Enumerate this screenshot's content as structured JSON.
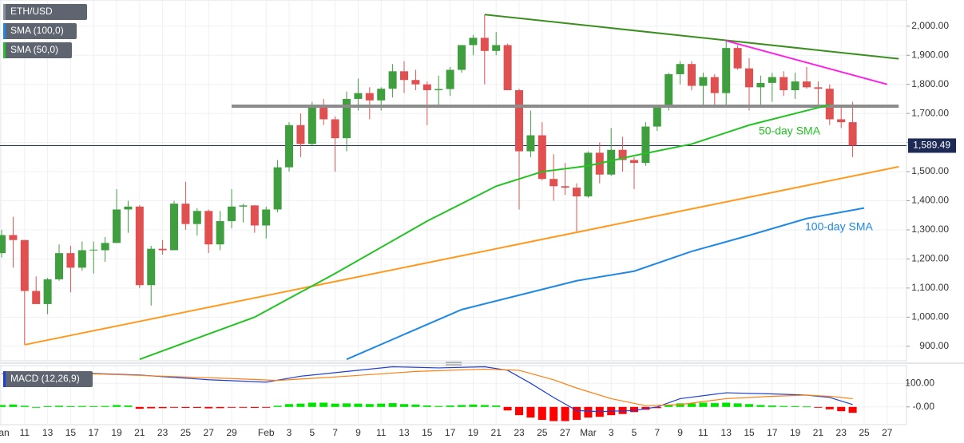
{
  "chart_data": [
    {
      "type": "candlestick",
      "title": "ETH/USD",
      "up_color": "#3f9f3f",
      "down_color": "#e05050",
      "xlim": [
        -0.14,
        78.68
      ],
      "ylim": [
        850,
        2090
      ],
      "yticks": [
        {
          "value": 900,
          "label": "900.00"
        },
        {
          "value": 1000,
          "label": "1,000.00"
        },
        {
          "value": 1100,
          "label": "1,100.00"
        },
        {
          "value": 1200,
          "label": "1,200.00"
        },
        {
          "value": 1300,
          "label": "1,300.00"
        },
        {
          "value": 1400,
          "label": "1,400.00"
        },
        {
          "value": 1500,
          "label": "1,500.00"
        },
        {
          "value": 1600,
          "label": "1,600.00"
        },
        {
          "value": 1700,
          "label": "1,700.00"
        },
        {
          "value": 1800,
          "label": "1,800.00"
        },
        {
          "value": 1900,
          "label": "1,900.00"
        },
        {
          "value": 2000,
          "label": "2,000.00"
        }
      ],
      "xticks": [
        {
          "value": 0,
          "label": "Jan"
        },
        {
          "value": 2,
          "label": "11"
        },
        {
          "value": 4,
          "label": "13"
        },
        {
          "value": 6,
          "label": "15"
        },
        {
          "value": 8,
          "label": "17"
        },
        {
          "value": 10,
          "label": "19"
        },
        {
          "value": 12,
          "label": "21"
        },
        {
          "value": 14,
          "label": "23"
        },
        {
          "value": 16,
          "label": "25"
        },
        {
          "value": 18,
          "label": "27"
        },
        {
          "value": 20,
          "label": "29"
        },
        {
          "value": 23,
          "label": "Feb"
        },
        {
          "value": 25,
          "label": "3"
        },
        {
          "value": 27,
          "label": "5"
        },
        {
          "value": 29,
          "label": "7"
        },
        {
          "value": 31,
          "label": "9"
        },
        {
          "value": 33,
          "label": "11"
        },
        {
          "value": 35,
          "label": "13"
        },
        {
          "value": 37,
          "label": "15"
        },
        {
          "value": 39,
          "label": "17"
        },
        {
          "value": 41,
          "label": "19"
        },
        {
          "value": 43,
          "label": "21"
        },
        {
          "value": 45,
          "label": "23"
        },
        {
          "value": 47,
          "label": "25"
        },
        {
          "value": 49,
          "label": "27"
        },
        {
          "value": 51,
          "label": "Mar"
        },
        {
          "value": 53,
          "label": "3"
        },
        {
          "value": 55,
          "label": "5"
        },
        {
          "value": 57,
          "label": "7"
        },
        {
          "value": 59,
          "label": "9"
        },
        {
          "value": 61,
          "label": "11"
        },
        {
          "value": 63,
          "label": "13"
        },
        {
          "value": 65,
          "label": "15"
        },
        {
          "value": 67,
          "label": "17"
        },
        {
          "value": 69,
          "label": "19"
        },
        {
          "value": 71,
          "label": "21"
        },
        {
          "value": 73,
          "label": "23"
        },
        {
          "value": 75,
          "label": "25"
        },
        {
          "value": 77,
          "label": "27"
        }
      ],
      "ohlc": [
        [
          1220,
          1300,
          1205,
          1282
        ],
        [
          1282,
          1345,
          1170,
          1265
        ],
        [
          1265,
          1265,
          905,
          1090
        ],
        [
          1090,
          1140,
          1045,
          1045
        ],
        [
          1045,
          1135,
          1010,
          1130
        ],
        [
          1130,
          1250,
          1125,
          1220
        ],
        [
          1220,
          1245,
          1085,
          1170
        ],
        [
          1170,
          1260,
          1160,
          1230
        ],
        [
          1230,
          1260,
          1150,
          1232
        ],
        [
          1230,
          1275,
          1190,
          1255
        ],
        [
          1255,
          1440,
          1255,
          1370
        ],
        [
          1370,
          1400,
          1290,
          1380
        ],
        [
          1380,
          1385,
          1100,
          1110
        ],
        [
          1110,
          1245,
          1040,
          1235
        ],
        [
          1235,
          1265,
          1215,
          1230
        ],
        [
          1230,
          1400,
          1230,
          1390
        ],
        [
          1390,
          1465,
          1300,
          1320
        ],
        [
          1320,
          1375,
          1280,
          1365
        ],
        [
          1365,
          1370,
          1220,
          1250
        ],
        [
          1250,
          1365,
          1230,
          1330
        ],
        [
          1330,
          1440,
          1305,
          1380
        ],
        [
          1380,
          1390,
          1325,
          1384
        ],
        [
          1384,
          1385,
          1290,
          1315
        ],
        [
          1315,
          1380,
          1270,
          1370
        ],
        [
          1370,
          1540,
          1360,
          1515
        ],
        [
          1515,
          1670,
          1500,
          1660
        ],
        [
          1660,
          1700,
          1550,
          1595
        ],
        [
          1595,
          1740,
          1590,
          1720
        ],
        [
          1720,
          1750,
          1660,
          1680
        ],
        [
          1680,
          1690,
          1500,
          1615
        ],
        [
          1615,
          1775,
          1570,
          1750
        ],
        [
          1750,
          1820,
          1710,
          1770
        ],
        [
          1770,
          1790,
          1680,
          1745
        ],
        [
          1745,
          1790,
          1710,
          1785
        ],
        [
          1785,
          1870,
          1755,
          1845
        ],
        [
          1845,
          1880,
          1770,
          1815
        ],
        [
          1815,
          1850,
          1780,
          1800
        ],
        [
          1800,
          1810,
          1660,
          1780
        ],
        [
          1780,
          1830,
          1730,
          1784
        ],
        [
          1784,
          1860,
          1760,
          1850
        ],
        [
          1850,
          1930,
          1840,
          1935
        ],
        [
          1935,
          1970,
          1900,
          1960
        ],
        [
          1960,
          2040,
          1800,
          1915
        ],
        [
          1915,
          1980,
          1900,
          1935
        ],
        [
          1935,
          1940,
          1780,
          1780
        ],
        [
          1780,
          1785,
          1370,
          1570
        ],
        [
          1570,
          1710,
          1550,
          1625
        ],
        [
          1625,
          1670,
          1470,
          1475
        ],
        [
          1475,
          1560,
          1400,
          1450
        ],
        [
          1450,
          1530,
          1420,
          1445
        ],
        [
          1445,
          1460,
          1295,
          1415
        ],
        [
          1415,
          1570,
          1410,
          1565
        ],
        [
          1565,
          1600,
          1460,
          1490
        ],
        [
          1490,
          1650,
          1485,
          1575
        ],
        [
          1575,
          1620,
          1500,
          1540
        ],
        [
          1540,
          1550,
          1440,
          1530
        ],
        [
          1530,
          1670,
          1520,
          1655
        ],
        [
          1655,
          1730,
          1640,
          1720
        ],
        [
          1720,
          1840,
          1710,
          1835
        ],
        [
          1835,
          1880,
          1800,
          1870
        ],
        [
          1870,
          1880,
          1780,
          1795
        ],
        [
          1795,
          1840,
          1730,
          1825
        ],
        [
          1825,
          1835,
          1730,
          1770
        ],
        [
          1770,
          1950,
          1730,
          1925
        ],
        [
          1925,
          1935,
          1850,
          1855
        ],
        [
          1855,
          1890,
          1710,
          1790
        ],
        [
          1790,
          1830,
          1720,
          1805
        ],
        [
          1805,
          1840,
          1740,
          1825
        ],
        [
          1825,
          1845,
          1760,
          1780
        ],
        [
          1780,
          1840,
          1750,
          1810
        ],
        [
          1810,
          1860,
          1785,
          1790
        ],
        [
          1790,
          1810,
          1720,
          1785
        ],
        [
          1785,
          1800,
          1660,
          1680
        ],
        [
          1680,
          1720,
          1650,
          1670
        ],
        [
          1670,
          1740,
          1550,
          1589.49
        ]
      ],
      "series": [
        {
          "name": "SMA (100,0)",
          "color": "#1e88e5",
          "x": [
            30,
            40,
            50,
            55,
            60,
            65,
            70,
            75
          ],
          "values": [
            855,
            1026,
            1125,
            1158,
            1226,
            1281,
            1339,
            1375
          ]
        },
        {
          "name": "SMA (50,0)",
          "color": "#22c322",
          "x": [
            12,
            22,
            29,
            37,
            43,
            47,
            51,
            55,
            60,
            65,
            72
          ],
          "values": [
            855,
            1000,
            1150,
            1330,
            1450,
            1500,
            1520,
            1555,
            1595,
            1660,
            1730
          ]
        }
      ],
      "lines": [
        {
          "color": "#ff9a1f",
          "points": [
            [
              2,
              905
            ],
            [
              78,
              1517
            ]
          ]
        },
        {
          "color": "#3b8f1f",
          "points": [
            [
              42,
              2040
            ],
            [
              78,
              1888
            ]
          ]
        },
        {
          "color": "#ff1fe8",
          "points": [
            [
              63,
              1950
            ],
            [
              77,
              1800
            ]
          ]
        },
        {
          "color": "#8c8c8c",
          "points": [
            [
              20,
              1725
            ],
            [
              78,
              1725
            ]
          ]
        }
      ],
      "last_price": {
        "value": 1589.49,
        "label": "1,589.49"
      },
      "annotations": [
        "50-day SMA",
        "100-day SMA"
      ]
    },
    {
      "type": "macd",
      "title": "MACD (12,26,9)",
      "ylim": [
        -75,
        175
      ],
      "yticks": [
        {
          "value": 100,
          "label": "100.00"
        },
        {
          "value": 0,
          "label": "-0.00"
        }
      ],
      "hist_up_color": "#00e400",
      "hist_down_color": "#ff0000",
      "histogram": [
        8,
        10,
        5,
        0,
        3,
        5,
        3,
        4,
        3,
        4,
        8,
        6,
        -8,
        -6,
        -5,
        -3,
        -4,
        -4,
        -6,
        -5,
        -3,
        -2,
        -4,
        -2,
        5,
        12,
        14,
        18,
        18,
        14,
        15,
        14,
        12,
        14,
        16,
        12,
        10,
        6,
        4,
        6,
        8,
        10,
        8,
        6,
        -15,
        -35,
        -45,
        -55,
        -60,
        -60,
        -55,
        -45,
        -42,
        -35,
        -30,
        -22,
        -12,
        -5,
        8,
        15,
        15,
        18,
        16,
        18,
        15,
        12,
        8,
        6,
        4,
        3,
        2,
        -3,
        -10,
        -18,
        -25
      ],
      "series": [
        {
          "color": "#1f3fd6",
          "x": [
            0,
            6,
            12,
            18,
            23,
            26,
            30,
            34,
            38,
            42,
            44,
            46,
            48,
            50,
            52,
            55,
            57,
            59,
            63,
            67,
            70,
            72,
            74
          ],
          "values": [
            140,
            145,
            135,
            115,
            105,
            130,
            150,
            170,
            165,
            170,
            155,
            100,
            40,
            -15,
            -20,
            -15,
            0,
            35,
            60,
            55,
            50,
            40,
            10
          ]
        },
        {
          "color": "#ff7f0e",
          "x": [
            0,
            8,
            14,
            20,
            24,
            30,
            36,
            42,
            45,
            48,
            50,
            53,
            56,
            59,
            63,
            67,
            70,
            72,
            74
          ],
          "values": [
            140,
            140,
            130,
            120,
            112,
            130,
            150,
            160,
            155,
            115,
            80,
            35,
            5,
            10,
            35,
            45,
            50,
            45,
            35
          ]
        }
      ]
    }
  ]
}
